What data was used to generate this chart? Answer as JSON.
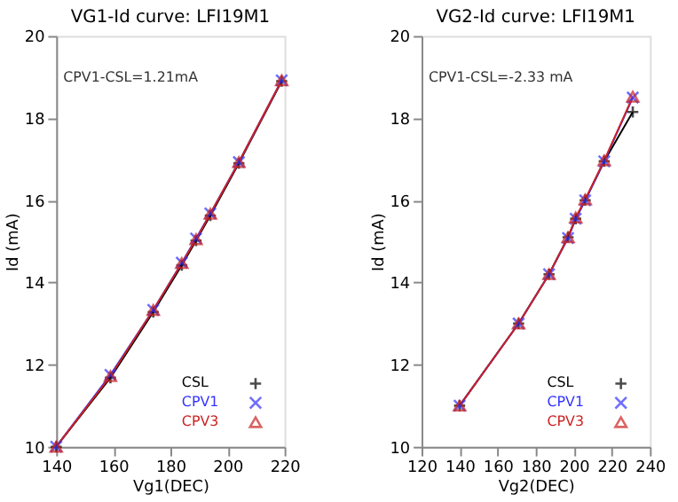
{
  "chart_data": [
    {
      "type": "line",
      "title": "VG1-Id curve: LFI19M1",
      "xlabel": "Vg1(DEC)",
      "ylabel": "Id (mA)",
      "annotations": [
        "CPV1-CSL=1.21mA"
      ],
      "x": [
        140,
        159,
        174,
        184,
        189,
        194,
        204,
        219
      ],
      "series": [
        {
          "name": "CSL",
          "color": "#000000",
          "marker": "cross",
          "values": [
            10.0,
            11.68,
            13.28,
            14.42,
            15.02,
            15.63,
            16.9,
            18.9
          ]
        },
        {
          "name": "CPV1",
          "color": "#3333ff",
          "marker": "x",
          "values": [
            10.0,
            11.75,
            13.33,
            14.48,
            15.07,
            15.68,
            16.93,
            18.92
          ]
        },
        {
          "name": "CPV3",
          "color": "#cc2222",
          "marker": "triangle",
          "values": [
            10.0,
            11.72,
            13.33,
            14.47,
            15.05,
            15.67,
            16.93,
            18.92
          ]
        }
      ],
      "xlim": [
        140,
        220
      ],
      "xticks": [
        140,
        160,
        180,
        200,
        220
      ],
      "ylim": [
        10,
        20
      ],
      "yticks": [
        10,
        12,
        14,
        16,
        18,
        20
      ],
      "grid": false,
      "legend": "bottom right"
    },
    {
      "type": "line",
      "title": "VG2-Id curve: LFI19M1",
      "xlabel": "Vg2(DEC)",
      "ylabel": "Id (mA)",
      "annotations": [
        "CPV1-CSL=-2.33 mA"
      ],
      "x": [
        140,
        171,
        187,
        197,
        201,
        206,
        216,
        231
      ],
      "series": [
        {
          "name": "CSL",
          "color": "#000000",
          "marker": "cross",
          "values": [
            11.0,
            13.0,
            14.2,
            15.1,
            15.55,
            16.0,
            16.95,
            18.15
          ]
        },
        {
          "name": "CPV1",
          "color": "#3333ff",
          "marker": "x",
          "values": [
            11.0,
            13.0,
            14.2,
            15.08,
            15.55,
            16.0,
            16.95,
            18.5
          ]
        },
        {
          "name": "CPV3",
          "color": "#cc2222",
          "marker": "triangle",
          "values": [
            11.0,
            13.0,
            14.2,
            15.1,
            15.58,
            16.02,
            16.97,
            18.52
          ]
        }
      ],
      "xlim": [
        120,
        240
      ],
      "xticks": [
        120,
        140,
        160,
        180,
        200,
        220,
        240
      ],
      "ylim": [
        10,
        20
      ],
      "yticks": [
        10,
        12,
        14,
        16,
        18,
        20
      ],
      "grid": false,
      "legend": "bottom right"
    }
  ]
}
